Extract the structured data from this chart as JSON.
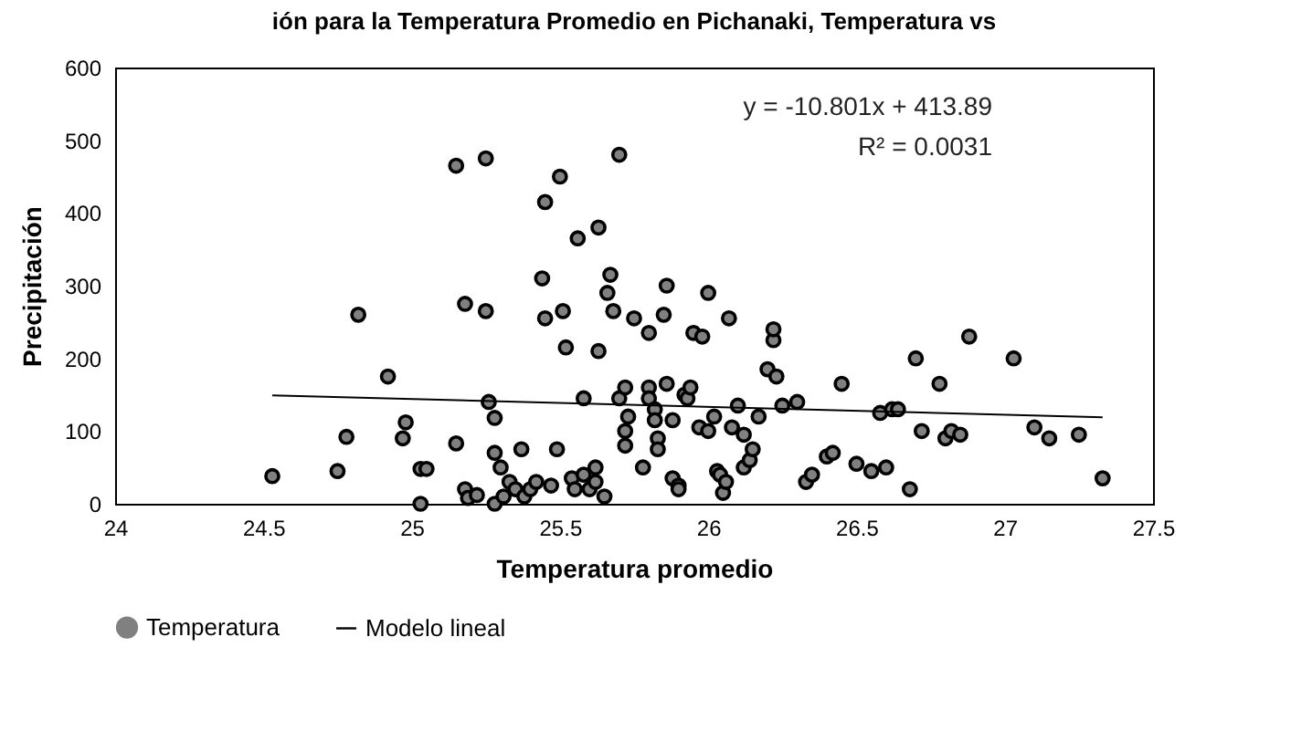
{
  "chart_data": {
    "type": "scatter",
    "title": "ión para la Temperatura Promedio en Pichanaki, Temperatura vs",
    "xlabel": "Temperatura promedio",
    "ylabel": "Precipitación",
    "annotations": [
      "y = -10.801x + 413.89",
      "R² = 0.0031"
    ],
    "xlim": [
      24,
      27.5
    ],
    "xticks": [
      24,
      24.5,
      25,
      25.5,
      26,
      26.5,
      27,
      27.5
    ],
    "ylim": [
      0,
      600
    ],
    "yticks": [
      0,
      100,
      200,
      300,
      400,
      500,
      600
    ],
    "grid": false,
    "legend": "bottom",
    "series": [
      {
        "name": "Temperatura",
        "marker": "circle",
        "color": "#808080",
        "x": [
          24.53,
          24.75,
          24.78,
          24.82,
          24.92,
          24.97,
          24.98,
          25.03,
          25.05,
          25.03,
          25.15,
          25.15,
          25.18,
          25.18,
          25.19,
          25.22,
          25.25,
          25.25,
          25.26,
          25.28,
          25.28,
          25.28,
          25.31,
          25.3,
          25.33,
          25.35,
          25.37,
          25.38,
          25.4,
          25.42,
          25.44,
          25.45,
          25.45,
          25.47,
          25.49,
          25.5,
          25.51,
          25.52,
          25.54,
          25.55,
          25.56,
          25.58,
          25.58,
          25.6,
          25.62,
          25.62,
          25.63,
          25.63,
          25.65,
          25.66,
          25.67,
          25.68,
          25.7,
          25.7,
          25.72,
          25.72,
          25.72,
          25.73,
          25.75,
          25.78,
          25.8,
          25.8,
          25.8,
          25.82,
          25.82,
          25.83,
          25.83,
          25.85,
          25.86,
          25.86,
          25.88,
          25.88,
          25.9,
          25.9,
          25.92,
          25.93,
          25.94,
          25.95,
          25.97,
          25.98,
          26.0,
          26.0,
          26.02,
          26.03,
          26.04,
          26.05,
          26.06,
          26.07,
          26.08,
          26.1,
          26.12,
          26.12,
          26.14,
          26.15,
          26.17,
          26.2,
          26.22,
          26.22,
          26.23,
          26.25,
          26.3,
          26.33,
          26.35,
          26.4,
          26.42,
          26.45,
          26.5,
          26.55,
          26.58,
          26.6,
          26.62,
          26.64,
          26.68,
          26.7,
          26.72,
          26.78,
          26.8,
          26.82,
          26.85,
          26.88,
          27.03,
          27.1,
          27.15,
          27.25,
          27.33
        ],
        "values": [
          38,
          45,
          92,
          260,
          175,
          90,
          112,
          48,
          48,
          0,
          83,
          465,
          275,
          20,
          8,
          12,
          475,
          265,
          140,
          118,
          70,
          0,
          10,
          50,
          30,
          20,
          75,
          10,
          20,
          30,
          310,
          255,
          415,
          25,
          75,
          450,
          265,
          215,
          35,
          20,
          365,
          40,
          145,
          20,
          30,
          50,
          380,
          210,
          10,
          290,
          315,
          265,
          480,
          145,
          160,
          100,
          80,
          120,
          255,
          50,
          235,
          160,
          145,
          130,
          115,
          90,
          75,
          260,
          300,
          165,
          115,
          35,
          25,
          20,
          150,
          145,
          160,
          235,
          105,
          230,
          290,
          100,
          120,
          45,
          40,
          15,
          30,
          255,
          105,
          135,
          50,
          95,
          60,
          75,
          120,
          185,
          225,
          240,
          175,
          135,
          140,
          30,
          40,
          65,
          70,
          165,
          55,
          45,
          125,
          50,
          130,
          130,
          20,
          200,
          100,
          165,
          90,
          100,
          95,
          230,
          200,
          105,
          90,
          95,
          35
        ]
      },
      {
        "name": "Modelo lineal",
        "type": "line",
        "marker": "none",
        "color": "#000000",
        "x": [
          24.53,
          27.33
        ],
        "values": [
          149,
          119
        ]
      }
    ]
  }
}
